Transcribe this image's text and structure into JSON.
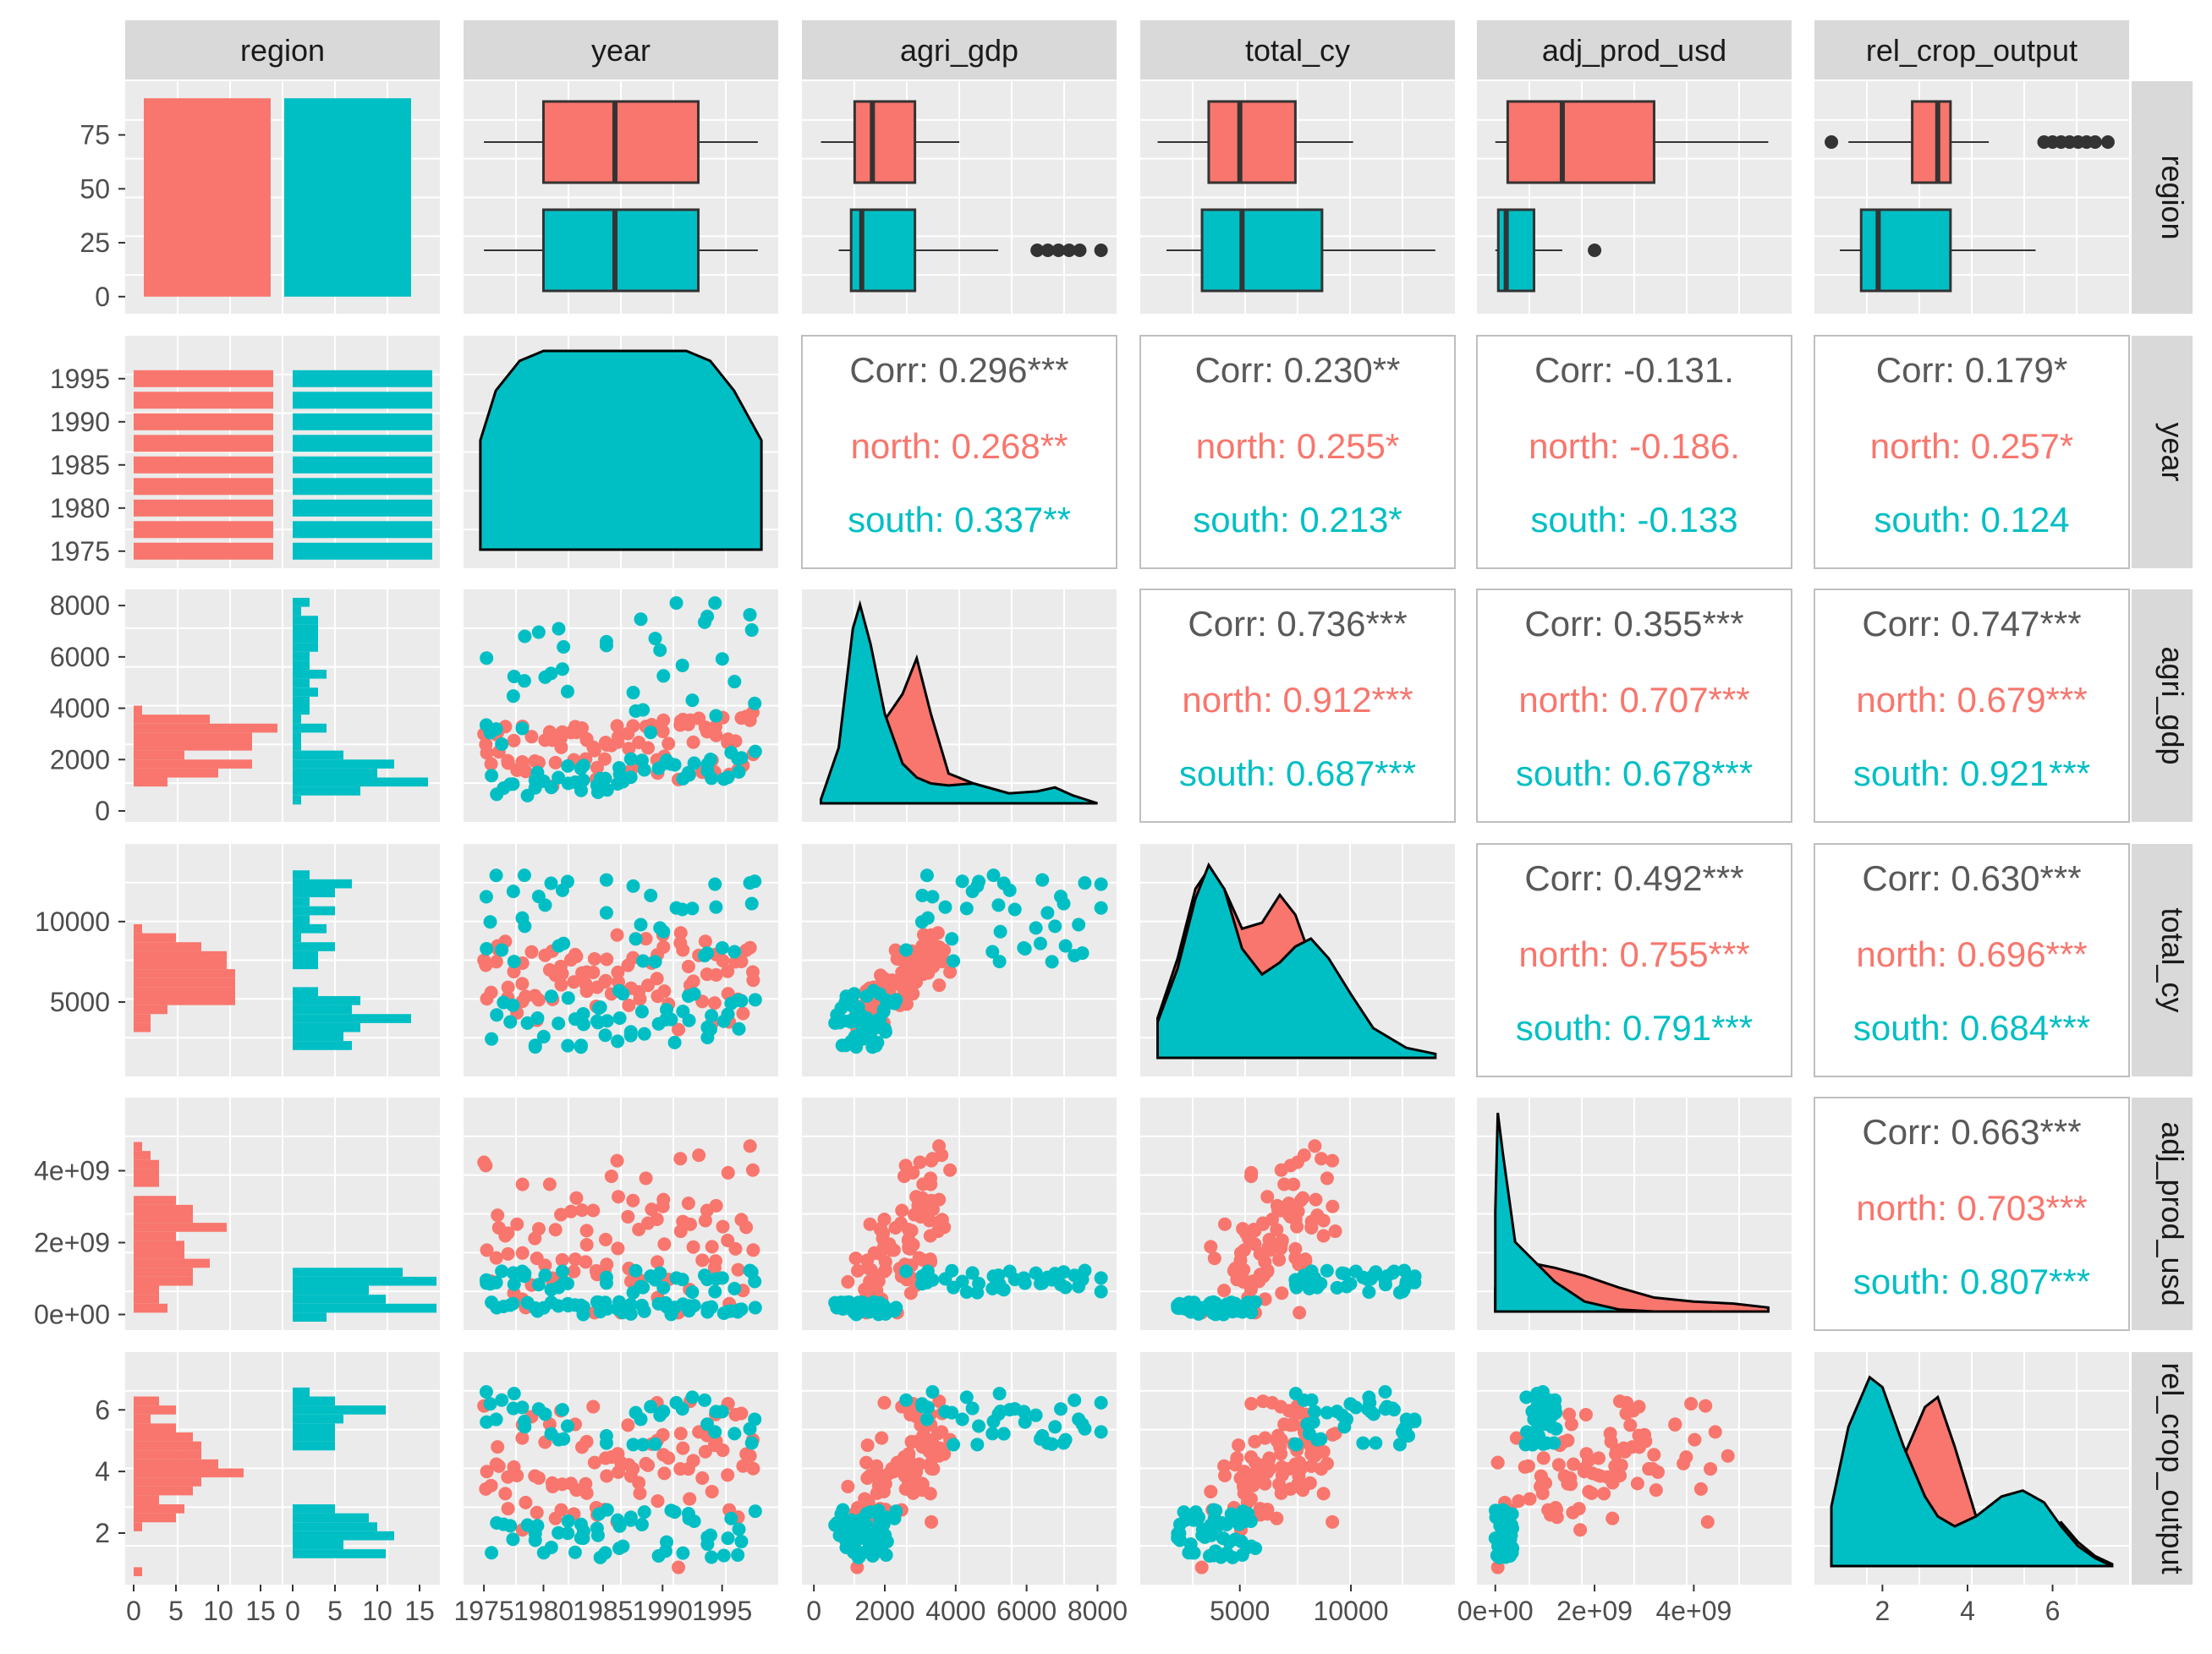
{
  "colors": {
    "north": "#F8766D",
    "south": "#00BFC4",
    "overall": "#595959",
    "panel": "#EBEBEB",
    "strip": "#D9D9D9"
  },
  "chart_data": {
    "type": "scatter",
    "variables": [
      "region",
      "year",
      "agri_gdp",
      "total_cy",
      "adj_prod_usd",
      "rel_crop_output"
    ],
    "groups": [
      "north",
      "south"
    ],
    "axes": {
      "region_counts": {
        "ticks": [
          0,
          25,
          50,
          75
        ],
        "ticklabels": [
          "0",
          "25",
          "50",
          "75"
        ]
      },
      "year": {
        "ticks": [
          1975,
          1980,
          1985,
          1990,
          1995
        ],
        "ticklabels": [
          "1975",
          "1980",
          "1985",
          "1990",
          "1995"
        ]
      },
      "agri_gdp": {
        "ticks": [
          0,
          2000,
          4000,
          6000,
          8000
        ],
        "ticklabels": [
          "0",
          "2000",
          "4000",
          "6000",
          "8000"
        ]
      },
      "total_cy": {
        "ticks": [
          5000,
          10000
        ],
        "ticklabels": [
          "5000",
          "10000"
        ]
      },
      "adj_prod_usd": {
        "ticks": [
          0,
          2000000000,
          4000000000
        ],
        "ticklabels": [
          "0e+00",
          "2e+09",
          "4e+09"
        ]
      },
      "adj_prod_usd_y": {
        "ticks": [
          0,
          2000000000,
          4000000000
        ],
        "ticklabels": [
          "0e+00",
          "2e+09",
          "4e+09"
        ]
      },
      "rel_crop_output": {
        "ticks": [
          2,
          4,
          6
        ],
        "ticklabels": [
          "2",
          "4",
          "6"
        ]
      },
      "hist_counts": {
        "ticks": [
          0,
          5,
          10,
          15
        ],
        "ticklabels": [
          "0",
          "5",
          "10",
          "15"
        ]
      }
    },
    "region_counts": {
      "north": 92,
      "south": 92
    },
    "boxplots": {
      "year": {
        "north": [
          1975,
          1980,
          1986,
          1993,
          1998
        ],
        "south": [
          1975,
          1980,
          1986,
          1993,
          1998
        ]
      },
      "agri_gdp": {
        "north": [
          200,
          1150,
          1650,
          2850,
          4100
        ],
        "south": [
          700,
          1050,
          1350,
          2850,
          5200
        ],
        "south_outliers": [
          6300,
          6600,
          6900,
          7200,
          7500,
          8100
        ]
      },
      "total_cy": {
        "north": [
          1300,
          3600,
          5000,
          7500,
          10100
        ],
        "south": [
          1700,
          3300,
          5100,
          8700,
          13800
        ]
      },
      "adj_prod_usd": {
        "north": [
          0,
          250000000,
          1350000000,
          3200000000,
          5500000000
        ],
        "south": [
          0,
          60000000,
          220000000,
          780000000,
          1350000000
        ],
        "south_outliers": [
          2000000000
        ]
      },
      "rel_crop_output": {
        "north": [
          1.2,
          2.7,
          3.3,
          3.6,
          4.5
        ],
        "north_outliers": [
          0.8,
          5.8,
          6.0,
          6.2,
          6.4,
          6.6,
          6.8,
          7.0,
          7.3
        ],
        "south": [
          1.0,
          1.5,
          1.9,
          3.6,
          5.6
        ]
      }
    },
    "correlations": [
      {
        "row": "year",
        "col": "agri_gdp",
        "overall": "Corr: 0.296***",
        "north": "north: 0.268**",
        "south": "south: 0.337**"
      },
      {
        "row": "year",
        "col": "total_cy",
        "overall": "Corr: 0.230**",
        "north": "north: 0.255*",
        "south": "south: 0.213*"
      },
      {
        "row": "year",
        "col": "adj_prod_usd",
        "overall": "Corr: -0.131.",
        "north": "north: -0.186.",
        "south": "south: -0.133"
      },
      {
        "row": "year",
        "col": "rel_crop_output",
        "overall": "Corr: 0.179*",
        "north": "north: 0.257*",
        "south": "south: 0.124"
      },
      {
        "row": "agri_gdp",
        "col": "total_cy",
        "overall": "Corr: 0.736***",
        "north": "north: 0.912***",
        "south": "south: 0.687***"
      },
      {
        "row": "agri_gdp",
        "col": "adj_prod_usd",
        "overall": "Corr: 0.355***",
        "north": "north: 0.707***",
        "south": "south: 0.678***"
      },
      {
        "row": "agri_gdp",
        "col": "rel_crop_output",
        "overall": "Corr: 0.747***",
        "north": "north: 0.679***",
        "south": "south: 0.921***"
      },
      {
        "row": "total_cy",
        "col": "adj_prod_usd",
        "overall": "Corr: 0.492***",
        "north": "north: 0.755***",
        "south": "south: 0.791***"
      },
      {
        "row": "total_cy",
        "col": "rel_crop_output",
        "overall": "Corr: 0.630***",
        "north": "north: 0.696***",
        "south": "south: 0.684***"
      },
      {
        "row": "adj_prod_usd",
        "col": "rel_crop_output",
        "overall": "Corr: 0.663***",
        "north": "north: 0.703***",
        "south": "south: 0.807***"
      }
    ],
    "densities": {
      "year": {
        "x": [
          1974.7,
          1976,
          1978,
          1980,
          1986,
          1992,
          1994,
          1996,
          1998.3
        ],
        "south": [
          0.55,
          0.8,
          0.95,
          1.0,
          1.0,
          1.0,
          0.95,
          0.8,
          0.55
        ]
      },
      "agri_gdp": {
        "x": [
          200,
          700,
          1100,
          1300,
          1600,
          2000,
          2500,
          2900,
          3300,
          3800,
          4500,
          5500,
          6300,
          6800,
          7300,
          8000
        ],
        "north": [
          0.02,
          0.25,
          0.8,
          0.93,
          0.7,
          0.42,
          0.55,
          0.73,
          0.45,
          0.15,
          0.1,
          0.05,
          0.04,
          0.03,
          0.02,
          0.0
        ],
        "south": [
          0.02,
          0.28,
          0.88,
          1.0,
          0.8,
          0.45,
          0.2,
          0.13,
          0.1,
          0.09,
          0.1,
          0.05,
          0.06,
          0.08,
          0.04,
          0.0
        ]
      },
      "total_cy": {
        "x": [
          1300,
          2200,
          3000,
          3600,
          4300,
          5100,
          6000,
          6800,
          7500,
          8200,
          9000,
          10000,
          11000,
          12500,
          13800
        ],
        "north": [
          0.2,
          0.5,
          0.85,
          0.95,
          0.85,
          0.65,
          0.68,
          0.82,
          0.72,
          0.5,
          0.3,
          0.15,
          0.06,
          0.02,
          0.0
        ],
        "south": [
          0.18,
          0.45,
          0.8,
          0.97,
          0.85,
          0.55,
          0.42,
          0.48,
          0.56,
          0.6,
          0.5,
          0.32,
          0.15,
          0.05,
          0.02
        ]
      },
      "adj_prod_usd": {
        "x": [
          0,
          50000000,
          150000000,
          400000000,
          800000000,
          1200000000,
          1800000000,
          2500000000,
          3200000000,
          4000000000,
          4800000000,
          5500000000
        ],
        "north": [
          0.12,
          0.2,
          0.25,
          0.26,
          0.24,
          0.22,
          0.18,
          0.12,
          0.07,
          0.05,
          0.04,
          0.02
        ],
        "south": [
          0.5,
          1.0,
          0.8,
          0.35,
          0.25,
          0.15,
          0.05,
          0.01,
          0.0,
          0.0,
          0.0,
          0.0
        ]
      },
      "rel_crop_output": {
        "x": [
          0.8,
          1.2,
          1.7,
          2.0,
          2.5,
          3.0,
          3.3,
          3.7,
          4.2,
          4.8,
          5.3,
          5.8,
          6.2,
          6.6,
          7.0,
          7.4
        ],
        "north": [
          0.05,
          0.15,
          0.35,
          0.45,
          0.55,
          0.8,
          0.85,
          0.6,
          0.25,
          0.12,
          0.12,
          0.18,
          0.22,
          0.12,
          0.05,
          0.01
        ],
        "south": [
          0.3,
          0.7,
          0.95,
          0.9,
          0.6,
          0.35,
          0.25,
          0.2,
          0.25,
          0.35,
          0.38,
          0.32,
          0.2,
          0.1,
          0.04,
          0.0
        ]
      }
    },
    "histograms": {
      "year": {
        "bins": [
          1975,
          1977.5,
          1980,
          1982.5,
          1985,
          1987.5,
          1990,
          1992.5,
          1995
        ],
        "north": [
          16,
          16,
          16,
          16,
          16,
          16,
          16,
          16,
          16
        ],
        "south": [
          16,
          16,
          16,
          16,
          16,
          16,
          16,
          16,
          16
        ]
      }
    }
  }
}
